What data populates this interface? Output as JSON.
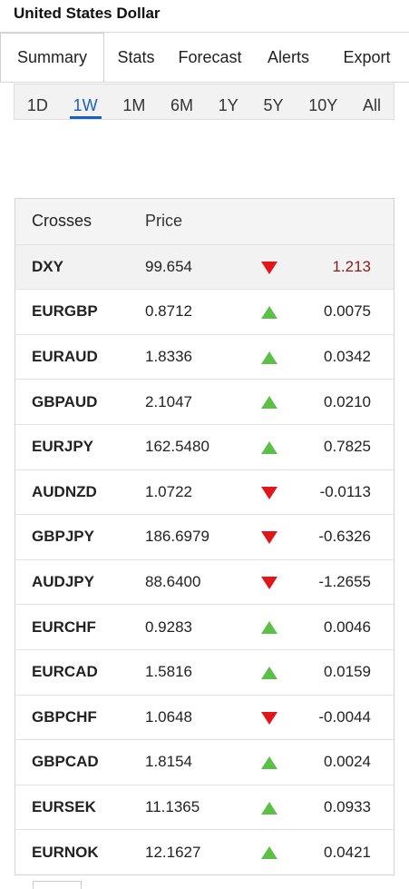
{
  "header": {
    "title": "United States Dollar"
  },
  "tabs": {
    "items": [
      "Summary",
      "Stats",
      "Forecast",
      "Alerts",
      "Export"
    ],
    "selected": 0
  },
  "periods": {
    "items": [
      "1D",
      "1W",
      "1M",
      "6M",
      "1Y",
      "5Y",
      "10Y",
      "All"
    ],
    "selected": 1
  },
  "table": {
    "columns": [
      "Crosses",
      "Price"
    ],
    "rows": [
      {
        "name": "DXY",
        "price": "99.654",
        "trend": "down",
        "change": "1.213",
        "change_color": "#8b1a1a"
      },
      {
        "name": "EURGBP",
        "price": "0.8712",
        "trend": "up",
        "change": "0.0075"
      },
      {
        "name": "EURAUD",
        "price": "1.8336",
        "trend": "up",
        "change": "0.0342"
      },
      {
        "name": "GBPAUD",
        "price": "2.1047",
        "trend": "up",
        "change": "0.0210"
      },
      {
        "name": "EURJPY",
        "price": "162.5480",
        "trend": "up",
        "change": "0.7825"
      },
      {
        "name": "AUDNZD",
        "price": "1.0722",
        "trend": "down",
        "change": "-0.0113"
      },
      {
        "name": "GBPJPY",
        "price": "186.6979",
        "trend": "down",
        "change": "-0.6326"
      },
      {
        "name": "AUDJPY",
        "price": "88.6400",
        "trend": "down",
        "change": "-1.2655"
      },
      {
        "name": "EURCHF",
        "price": "0.9283",
        "trend": "up",
        "change": "0.0046"
      },
      {
        "name": "EURCAD",
        "price": "1.5816",
        "trend": "up",
        "change": "0.0159"
      },
      {
        "name": "GBPCHF",
        "price": "1.0648",
        "trend": "down",
        "change": "-0.0044"
      },
      {
        "name": "GBPCAD",
        "price": "1.8154",
        "trend": "up",
        "change": "0.0024"
      },
      {
        "name": "EURSEK",
        "price": "11.1365",
        "trend": "up",
        "change": "0.0933"
      },
      {
        "name": "EURNOK",
        "price": "12.1627",
        "trend": "up",
        "change": "0.0421"
      }
    ]
  }
}
